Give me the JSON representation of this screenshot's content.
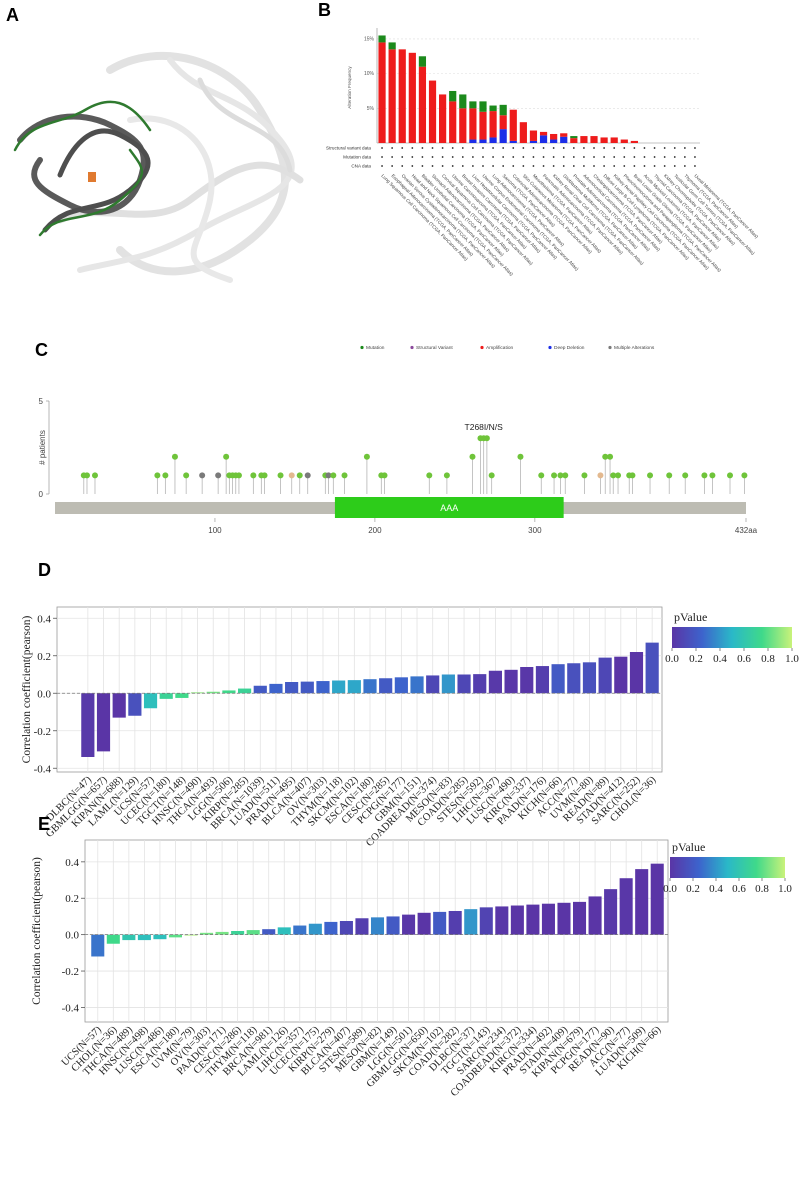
{
  "figure_a": {
    "panel": "A"
  },
  "chart_data": [
    {
      "type": "stacked_bar",
      "panel": "B",
      "y_label": "Alteration Frequency",
      "categories": [
        "Lung Squamous Cell Carcinoma (TCGA, PanCancer Atlas)",
        "Esophageal Adenocarcinoma (TCGA, PanCancer Atlas)",
        "Ovarian Serous Cystadenocarcinoma (TCGA, PanCancer Atlas)",
        "Head and Neck Squamous Cell Carcinoma (TCGA, PanCancer Atlas)",
        "Bladder Urothelial Carcinoma (TCGA, PanCancer Atlas)",
        "Stomach Adenocarcinoma (TCGA, PanCancer Atlas)",
        "Cervical Squamous Cell Carcinoma (TCGA, PanCancer Atlas)",
        "Uterine Carcinosarcoma (TCGA, PanCancer Atlas)",
        "Breast Invasive Carcinoma (TCGA, PanCancer Atlas)",
        "Liver Hepatocellular Carcinoma (TCGA, PanCancer Atlas)",
        "Uterine Corpus Endometrial Carcinoma (TCGA, PanCancer Atlas)",
        "Lung Adenocarcinoma (TCGA, PanCancer Atlas)",
        "Sarcoma (TCGA, PanCancer Atlas)",
        "Colorectal Adenocarcinoma (TCGA, PanCancer Atlas)",
        "Skin Cutaneous Melanoma (TCGA, PanCancer Atlas)",
        "Mesothelioma (TCGA, PanCancer Atlas)",
        "Pancreatic Adenocarcinoma (TCGA, PanCancer Atlas)",
        "Kidney Renal Clear Cell Carcinoma (TCGA, PanCancer Atlas)",
        "Glioblastoma Multiforme (TCGA, PanCancer Atlas)",
        "Prostate Adenocarcinoma (TCGA, PanCancer Atlas)",
        "Adrenocortical Carcinoma (TCGA, PanCancer Atlas)",
        "Cholangiocarcinoma (TCGA, PanCancer Atlas)",
        "Diffuse Large B-Cell Lymphoma (TCGA, PanCancer Atlas)",
        "Kidney Renal Papillary Cell Carcinoma (TCGA, PanCancer Atlas)",
        "Pheochromocytoma and Paraganglioma (TCGA, PanCancer Atlas)",
        "Brain Lower Grade Glioma (TCGA, PanCancer Atlas)",
        "Acute Myeloid Leukemia (TCGA, PanCancer Atlas)",
        "Thyroid Carcinoma (TCGA, PanCancer Atlas)",
        "Kidney Chromophobe (TCGA, PanCancer Atlas)",
        "Testicular Germ Cell Tumors (TCGA, PanCancer Atlas)",
        "Thymoma (TCGA, PanCancer Atlas)",
        "Uveal Melanoma (TCGA, PanCancer Atlas)"
      ],
      "series": [
        {
          "name": "Mutation",
          "color": "#1c8a1c",
          "values": [
            1,
            1,
            0,
            0,
            1.5,
            0,
            0,
            1.5,
            2,
            1,
            1.5,
            0.8,
            1.5,
            0,
            0,
            0,
            0,
            0,
            0,
            0.3,
            0,
            0,
            0,
            0,
            0,
            0,
            0,
            0,
            0,
            0,
            0,
            0
          ]
        },
        {
          "name": "Structural Variant",
          "color": "#8b4a9c",
          "values": [
            0,
            0,
            0,
            0,
            0,
            0,
            0,
            0,
            0,
            0,
            0,
            0,
            0,
            0,
            0,
            0,
            0,
            0,
            0,
            0,
            0,
            0,
            0,
            0,
            0,
            0,
            0,
            0,
            0,
            0,
            0,
            0
          ]
        },
        {
          "name": "Amplification",
          "color": "#ee1c1c",
          "values": [
            14.5,
            13.5,
            13.5,
            13,
            11,
            9,
            7,
            6,
            5,
            4.5,
            4,
            3.8,
            2,
            4.5,
            3,
            1.5,
            0.5,
            0.8,
            0.5,
            0.7,
            1,
            1,
            0.8,
            0.8,
            0.5,
            0.3,
            0,
            0,
            0,
            0,
            0,
            0
          ]
        },
        {
          "name": "Deep Deletion",
          "color": "#1c2ee8",
          "values": [
            0,
            0,
            0,
            0,
            0,
            0,
            0,
            0,
            0,
            0.5,
            0.5,
            0.8,
            2,
            0.3,
            0,
            0.3,
            1.1,
            0.5,
            0.9,
            0,
            0,
            0,
            0,
            0,
            0,
            0,
            0,
            0,
            0,
            0,
            0,
            0
          ]
        },
        {
          "name": "Multiple Alterations",
          "color": "#7a7a7a",
          "values": [
            0,
            0,
            0,
            0,
            0,
            0,
            0,
            0,
            0,
            0,
            0,
            0,
            0,
            0,
            0,
            0,
            0,
            0,
            0,
            0,
            0,
            0,
            0,
            0,
            0,
            0,
            0,
            0,
            0,
            0,
            0,
            0
          ]
        }
      ],
      "ylim": [
        0,
        16
      ],
      "yticks": [
        {
          "value": 5,
          "label": "5%"
        },
        {
          "value": 10,
          "label": "10%"
        },
        {
          "value": 15,
          "label": "15%"
        }
      ],
      "grid": true,
      "rows": [
        "Structural variant data",
        "Mutation data",
        "CNA data"
      ]
    },
    {
      "type": "lollipop",
      "panel": "C",
      "y_label": "# patients",
      "x": [
        18,
        20,
        25,
        64,
        69,
        75,
        82,
        92,
        102,
        107,
        109,
        111,
        113,
        115,
        124,
        129,
        131,
        141,
        148,
        153,
        158,
        169,
        171,
        174,
        181,
        195,
        204,
        206,
        234,
        245,
        261,
        266,
        268,
        270,
        273,
        291,
        304,
        312,
        316,
        319,
        331,
        341,
        344,
        347,
        349,
        352,
        359,
        361,
        372,
        384,
        394,
        406,
        411,
        422,
        431
      ],
      "values": [
        1,
        1,
        1,
        1,
        1,
        2,
        1,
        1,
        1,
        2,
        1,
        1,
        1,
        1,
        1,
        1,
        1,
        1,
        1,
        1,
        1,
        1,
        1,
        1,
        1,
        2,
        1,
        1,
        1,
        1,
        2,
        3,
        3,
        3,
        1,
        2,
        1,
        1,
        1,
        1,
        1,
        1,
        2,
        2,
        1,
        1,
        1,
        1,
        1,
        1,
        1,
        1,
        1,
        1,
        1
      ],
      "colors": [
        "#6fc43a",
        "#6fc43a",
        "#6fc43a",
        "#6fc43a",
        "#6fc43a",
        "#6fc43a",
        "#6fc43a",
        "#7a7a7a",
        "#7a7a7a",
        "#6fc43a",
        "#6fc43a",
        "#6fc43a",
        "#6fc43a",
        "#6fc43a",
        "#6fc43a",
        "#6fc43a",
        "#6fc43a",
        "#6fc43a",
        "#e3b98f",
        "#6fc43a",
        "#7a7a7a",
        "#6fc43a",
        "#7a7a7a",
        "#6fc43a",
        "#6fc43a",
        "#6fc43a",
        "#6fc43a",
        "#6fc43a",
        "#6fc43a",
        "#6fc43a",
        "#6fc43a",
        "#6fc43a",
        "#6fc43a",
        "#6fc43a",
        "#6fc43a",
        "#6fc43a",
        "#6fc43a",
        "#6fc43a",
        "#6fc43a",
        "#6fc43a",
        "#6fc43a",
        "#e3b98f",
        "#6fc43a",
        "#6fc43a",
        "#6fc43a",
        "#6fc43a",
        "#6fc43a",
        "#6fc43a",
        "#6fc43a",
        "#6fc43a",
        "#6fc43a",
        "#6fc43a",
        "#6fc43a",
        "#6fc43a",
        "#6fc43a"
      ],
      "domains": [
        {
          "name": "AAA",
          "start": 175,
          "end": 318,
          "color": "#2dcc1a"
        }
      ],
      "xlim": [
        0,
        432
      ],
      "xticks": [
        100,
        200,
        300,
        {
          "value": 432,
          "label": "432aa"
        }
      ],
      "ylim": [
        0,
        5
      ],
      "yticks": [
        0,
        5
      ],
      "annotation": {
        "text": "T268I/N/S",
        "x": 268,
        "y": 3
      }
    },
    {
      "type": "corr_bar",
      "panel": "D",
      "y_label": "Correlation coefficient(pearson)",
      "categories": [
        "DLBC(N=47)",
        "GBMLGG(N=657)",
        "KIPAN(N=688)",
        "LAML(N=129)",
        "UCS(N=57)",
        "UCEC(N=180)",
        "TGCT(N=148)",
        "HNSC(N=490)",
        "THCA(N=493)",
        "LGG(N=506)",
        "KIRP(N=285)",
        "BRCA(N=1039)",
        "LUAD(N=511)",
        "PRAD(N=495)",
        "BLCA(N=407)",
        "OV(N=303)",
        "THYM(N=118)",
        "SKCM(N=102)",
        "ESCA(N=180)",
        "CESC(N=285)",
        "PCPG(N=177)",
        "GBM(N=151)",
        "COADREAD(N=374)",
        "MESO(N=83)",
        "COAD(N=285)",
        "STES(N=592)",
        "LIHC(N=367)",
        "LUSC(N=490)",
        "KIRC(N=337)",
        "PAAD(N=176)",
        "KICH(N=66)",
        "ACC(N=77)",
        "UVM(N=80)",
        "READ(N=89)",
        "STAD(N=412)",
        "SARC(N=252)",
        "CHOL(N=36)"
      ],
      "values": [
        -0.34,
        -0.31,
        -0.13,
        -0.12,
        -0.08,
        -0.03,
        -0.025,
        0.005,
        0.008,
        0.015,
        0.025,
        0.04,
        0.05,
        0.06,
        0.062,
        0.065,
        0.068,
        0.07,
        0.075,
        0.08,
        0.085,
        0.09,
        0.095,
        0.1,
        0.1,
        0.102,
        0.12,
        0.125,
        0.14,
        0.145,
        0.155,
        0.16,
        0.165,
        0.19,
        0.195,
        0.22,
        0.27
      ],
      "pvalues": [
        0.02,
        0,
        0,
        0.15,
        0.55,
        0.7,
        0.75,
        0.9,
        0.85,
        0.75,
        0.7,
        0.2,
        0.25,
        0.2,
        0.2,
        0.25,
        0.45,
        0.45,
        0.3,
        0.2,
        0.25,
        0.3,
        0.1,
        0.4,
        0.1,
        0.05,
        0.02,
        0.01,
        0.01,
        0.05,
        0.2,
        0.15,
        0.15,
        0.1,
        0,
        0,
        0.15
      ],
      "ylim": [
        -0.42,
        0.46
      ],
      "yticks": [
        -0.4,
        -0.2,
        {
          "value": 0,
          "label": "0.0"
        },
        0.2,
        0.4
      ],
      "grid": true,
      "colorbar_title": "pValue",
      "colorbar_lim": [
        0,
        1
      ],
      "colormap": [
        "#5a35a6",
        "#3d63cc",
        "#2ab8c8",
        "#3fd98a",
        "#c9f27a"
      ],
      "colorbar_ticks": [
        {
          "value": 0,
          "label": "0.0"
        },
        {
          "value": 0.2,
          "label": "0.2"
        },
        {
          "value": 0.4,
          "label": "0.4"
        },
        {
          "value": 0.6,
          "label": "0.6"
        },
        {
          "value": 0.8,
          "label": "0.8"
        },
        {
          "value": 1,
          "label": "1.0"
        }
      ]
    },
    {
      "type": "corr_bar",
      "panel": "E",
      "y_label": "Correlation coefficient(pearson)",
      "categories": [
        "UCS(N=57)",
        "CHOL(N=36)",
        "THCA(N=489)",
        "HNSC(N=498)",
        "LUSC(N=486)",
        "ESCA(N=180)",
        "UVM(N=79)",
        "OV(N=303)",
        "PAAD(N=171)",
        "CESC(N=286)",
        "THYM(N=118)",
        "BRCA(N=981)",
        "LAML(N=126)",
        "LIHC(N=357)",
        "UCEC(N=175)",
        "KIRP(N=279)",
        "BLCA(N=407)",
        "STES(N=589)",
        "MESO(N=82)",
        "GBM(N=149)",
        "LGG(N=501)",
        "GBMLGG(N=650)",
        "SKCM(N=102)",
        "COAD(N=282)",
        "DLBC(N=37)",
        "TGCT(N=143)",
        "SARC(N=234)",
        "COADREAD(N=372)",
        "KIRC(N=334)",
        "PRAD(N=492)",
        "STAD(N=409)",
        "KIPAN(N=679)",
        "PCPG(N=177)",
        "READ(N=90)",
        "ACC(N=77)",
        "LUAD(N=509)",
        "KICH(N=66)"
      ],
      "values": [
        -0.12,
        -0.05,
        -0.03,
        -0.03,
        -0.025,
        -0.015,
        -0.005,
        0.01,
        0.015,
        0.02,
        0.025,
        0.03,
        0.04,
        0.05,
        0.06,
        0.07,
        0.075,
        0.09,
        0.095,
        0.1,
        0.11,
        0.12,
        0.125,
        0.13,
        0.14,
        0.15,
        0.155,
        0.16,
        0.165,
        0.17,
        0.175,
        0.18,
        0.21,
        0.25,
        0.31,
        0.36,
        0.39
      ],
      "pvalues": [
        0.3,
        0.75,
        0.6,
        0.55,
        0.55,
        0.8,
        0.95,
        0.85,
        0.85,
        0.7,
        0.8,
        0.2,
        0.55,
        0.3,
        0.4,
        0.25,
        0.1,
        0.05,
        0.35,
        0.2,
        0.01,
        0,
        0.2,
        0.05,
        0.4,
        0.08,
        0.01,
        0,
        0,
        0,
        0,
        0,
        0,
        0.02,
        0.01,
        0,
        0
      ],
      "ylim": [
        -0.48,
        0.52
      ],
      "yticks": [
        -0.4,
        -0.2,
        {
          "value": 0,
          "label": "0.0"
        },
        0.2,
        0.4
      ],
      "grid": true,
      "colorbar_title": "pValue",
      "colorbar_lim": [
        0,
        1
      ],
      "colormap": [
        "#5a35a6",
        "#3d63cc",
        "#2ab8c8",
        "#3fd98a",
        "#c9f27a"
      ],
      "colorbar_ticks": [
        {
          "value": 0,
          "label": "0.0"
        },
        {
          "value": 0.2,
          "label": "0.2"
        },
        {
          "value": 0.4,
          "label": "0.4"
        },
        {
          "value": 0.6,
          "label": "0.6"
        },
        {
          "value": 0.8,
          "label": "0.8"
        },
        {
          "value": 1,
          "label": "1.0"
        }
      ]
    }
  ]
}
